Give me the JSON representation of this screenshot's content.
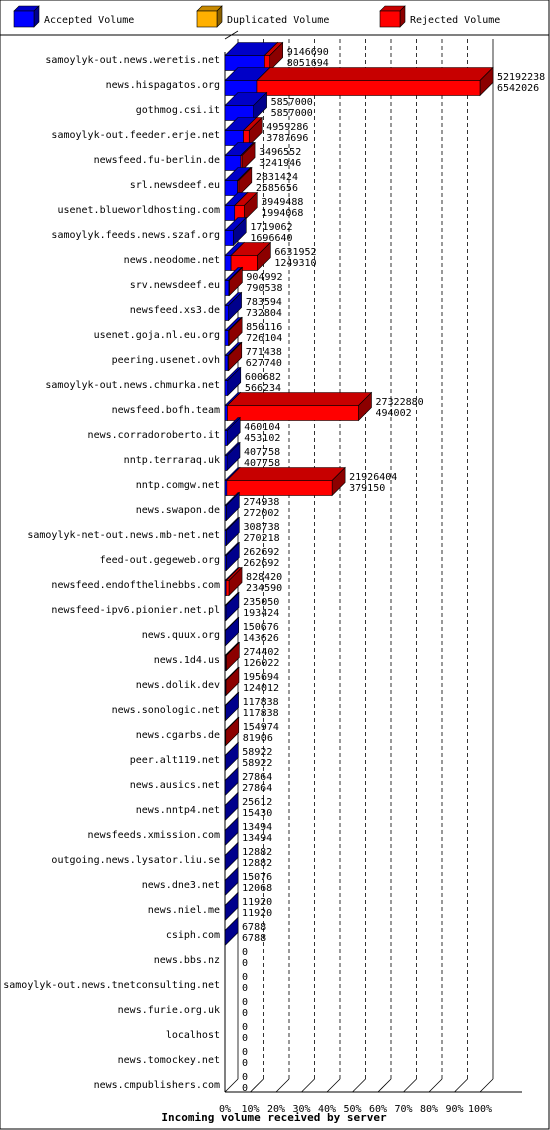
{
  "chart_data": {
    "type": "bar",
    "orientation": "horizontal",
    "stacked": true,
    "xlabel": "Incoming volume received by server",
    "legend": [
      {
        "name": "Accepted Volume",
        "color": "#0000ff"
      },
      {
        "name": "Duplicated Volume",
        "color": "#ffb000"
      },
      {
        "name": "Rejected Volume",
        "color": "#ff0000"
      }
    ],
    "legend_position": "top",
    "ticks": [
      "0%",
      "10%",
      "20%",
      "30%",
      "40%",
      "50%",
      "60%",
      "70%",
      "80%",
      "90%",
      "100%"
    ],
    "xlim": [
      0,
      52192238
    ],
    "grid": true,
    "rows": [
      {
        "server": "samoylyk-out.news.weretis.net",
        "total": 9146690,
        "accepted": 8051694
      },
      {
        "server": "news.hispagatos.org",
        "total": 52192238,
        "accepted": 6542026
      },
      {
        "server": "gothmog.csi.it",
        "total": 5857000,
        "accepted": 5857000
      },
      {
        "server": "samoylyk-out.feeder.erje.net",
        "total": 4959286,
        "accepted": 3787696
      },
      {
        "server": "newsfeed.fu-berlin.de",
        "total": 3496552,
        "accepted": 3241946
      },
      {
        "server": "srl.newsdeef.eu",
        "total": 2831424,
        "accepted": 2585656
      },
      {
        "server": "usenet.blueworldhosting.com",
        "total": 3949488,
        "accepted": 1994068
      },
      {
        "server": "samoylyk.feeds.news.szaf.org",
        "total": 1719062,
        "accepted": 1696640
      },
      {
        "server": "news.neodome.net",
        "total": 6631952,
        "accepted": 1249310
      },
      {
        "server": "srv.newsdeef.eu",
        "total": 904992,
        "accepted": 790538
      },
      {
        "server": "newsfeed.xs3.de",
        "total": 783594,
        "accepted": 732804
      },
      {
        "server": "usenet.goja.nl.eu.org",
        "total": 850116,
        "accepted": 726104
      },
      {
        "server": "peering.usenet.ovh",
        "total": 771438,
        "accepted": 627740
      },
      {
        "server": "samoylyk-out.news.chmurka.net",
        "total": 600682,
        "accepted": 566234
      },
      {
        "server": "newsfeed.bofh.team",
        "total": 27322880,
        "accepted": 494002
      },
      {
        "server": "news.corradoroberto.it",
        "total": 460104,
        "accepted": 453102
      },
      {
        "server": "nntp.terraraq.uk",
        "total": 407758,
        "accepted": 407758
      },
      {
        "server": "nntp.comgw.net",
        "total": 21926404,
        "accepted": 379150
      },
      {
        "server": "news.swapon.de",
        "total": 274938,
        "accepted": 272002
      },
      {
        "server": "samoylyk-net-out.news.mb-net.net",
        "total": 308738,
        "accepted": 270218
      },
      {
        "server": "feed-out.gegeweb.org",
        "total": 262692,
        "accepted": 262692
      },
      {
        "server": "newsfeed.endofthelinebbs.com",
        "total": 828420,
        "accepted": 234590
      },
      {
        "server": "newsfeed-ipv6.pionier.net.pl",
        "total": 235050,
        "accepted": 193424
      },
      {
        "server": "news.quux.org",
        "total": 150676,
        "accepted": 143626
      },
      {
        "server": "news.1d4.us",
        "total": 274402,
        "accepted": 126022
      },
      {
        "server": "news.dolik.dev",
        "total": 195694,
        "accepted": 124012
      },
      {
        "server": "news.sonologic.net",
        "total": 117838,
        "accepted": 117838
      },
      {
        "server": "news.cgarbs.de",
        "total": 154974,
        "accepted": 81906
      },
      {
        "server": "peer.alt119.net",
        "total": 58922,
        "accepted": 58922
      },
      {
        "server": "news.ausics.net",
        "total": 27864,
        "accepted": 27864
      },
      {
        "server": "news.nntp4.net",
        "total": 25612,
        "accepted": 15430
      },
      {
        "server": "newsfeeds.xmission.com",
        "total": 13494,
        "accepted": 13494
      },
      {
        "server": "outgoing.news.lysator.liu.se",
        "total": 12882,
        "accepted": 12882
      },
      {
        "server": "news.dne3.net",
        "total": 15076,
        "accepted": 12068
      },
      {
        "server": "news.niel.me",
        "total": 11920,
        "accepted": 11920
      },
      {
        "server": "csiph.com",
        "total": 6788,
        "accepted": 6788
      },
      {
        "server": "news.bbs.nz",
        "total": 0,
        "accepted": 0
      },
      {
        "server": "samoylyk-out.news.tnetconsulting.net",
        "total": 0,
        "accepted": 0
      },
      {
        "server": "news.furie.org.uk",
        "total": 0,
        "accepted": 0
      },
      {
        "server": "localhost",
        "total": 0,
        "accepted": 0
      },
      {
        "server": "news.tomockey.net",
        "total": 0,
        "accepted": 0
      },
      {
        "server": "news.cmpublishers.com",
        "total": 0,
        "accepted": 0
      }
    ]
  }
}
